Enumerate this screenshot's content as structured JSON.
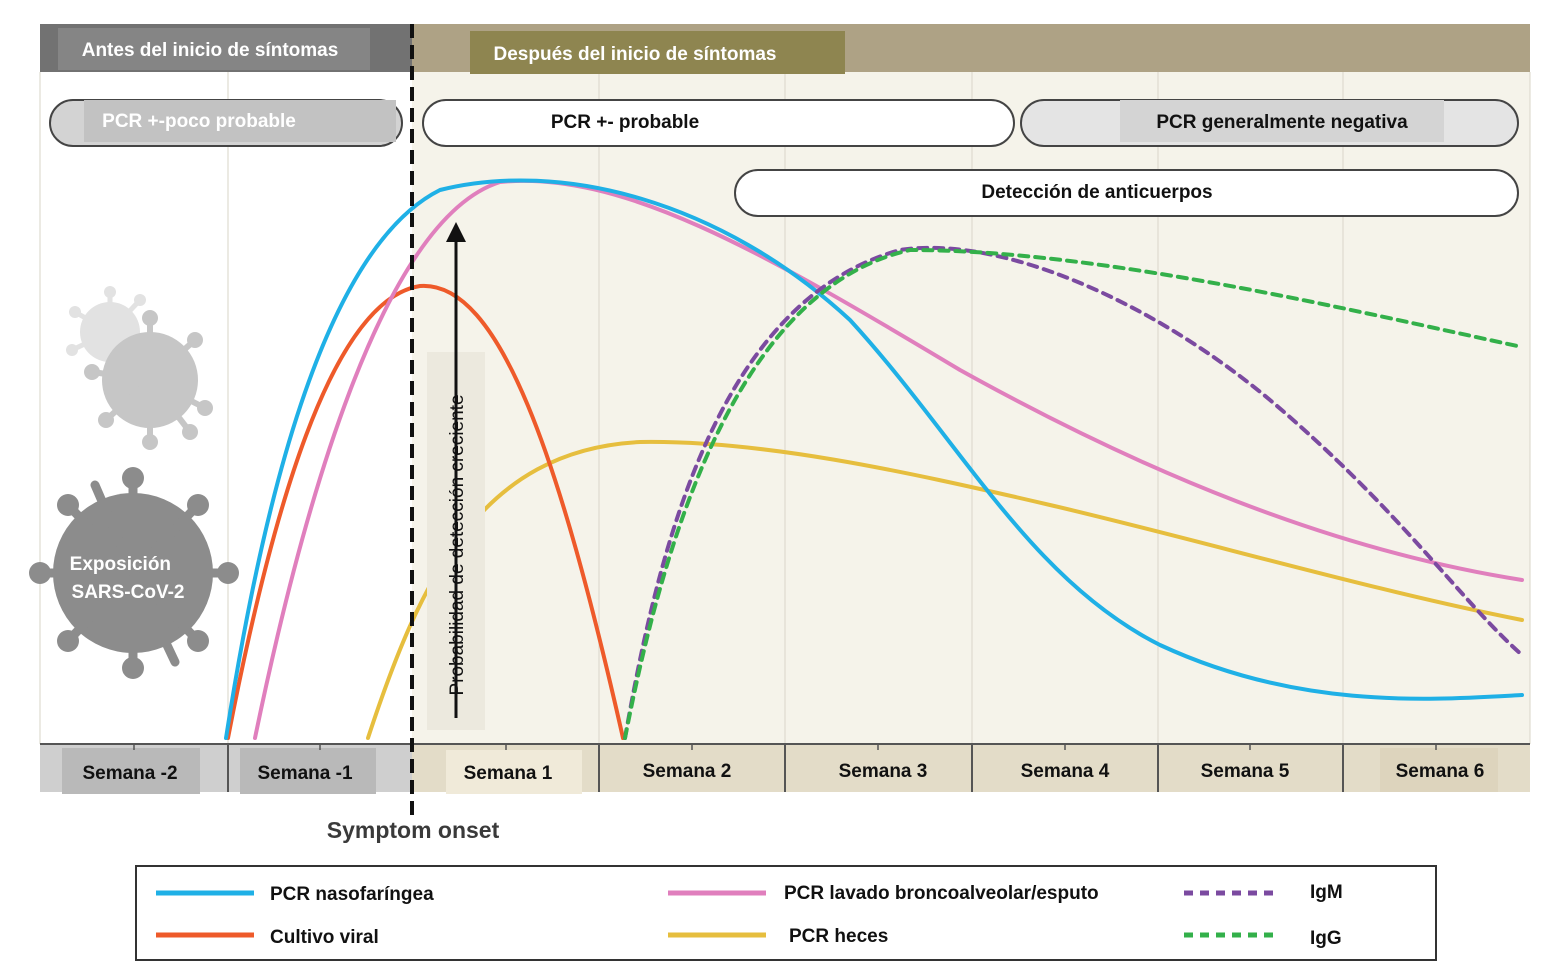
{
  "header": {
    "before_label": "Antes del inicio de síntomas",
    "after_label": "Después del inicio de síntomas"
  },
  "bands": {
    "pcr_unlikely": "PCR +-poco probable",
    "pcr_likely": "PCR +- probable",
    "pcr_negative": "PCR generalmente negativa",
    "antibodies": "Detección de anticuerpos"
  },
  "exposure_label": [
    "Exposición",
    "SARS-CoV-2"
  ],
  "arrow_label": "Probabilidad de detección creciente",
  "weeks": [
    "Semana -2",
    "Semana -1",
    "Semana 1",
    "Semana 2",
    "Semana 3",
    "Semana 4",
    "Semana 5",
    "Semana 6"
  ],
  "symptom_onset_label": "Symptom onset",
  "legend": [
    {
      "label": "PCR nasofaríngea",
      "color": "#1fb0e6",
      "style": "solid"
    },
    {
      "label": "Cultivo viral",
      "color": "#ee5a2a",
      "style": "solid"
    },
    {
      "label": "PCR lavado broncoalveolar/esputo",
      "color": "#e07fbd",
      "style": "solid"
    },
    {
      "label": "PCR heces",
      "color": "#e6be3e",
      "style": "solid"
    },
    {
      "label": "IgM",
      "color": "#7b4aa0",
      "style": "dashed"
    },
    {
      "label": "IgG",
      "color": "#33b04a",
      "style": "dashed"
    }
  ],
  "colors": {
    "before_header": "#727272",
    "after_header": "#aea285",
    "after_header_label_bg": "#8e8550",
    "before_bg": "#ffffff",
    "after_bg": "#f5f3ea"
  }
}
